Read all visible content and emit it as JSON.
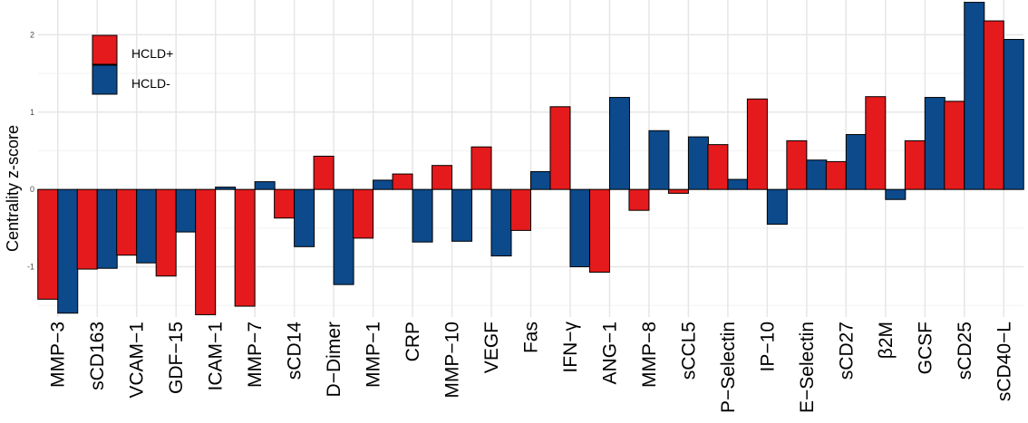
{
  "chart_data": {
    "type": "bar",
    "ylabel": "Centrality z-score",
    "xlabel": "",
    "ylim": [
      -1.65,
      2.45
    ],
    "yticks": [
      -1,
      0,
      1,
      2
    ],
    "categories": [
      "MMP−3",
      "sCD163",
      "VCAM−1",
      "GDF−15",
      "ICAM−1",
      "MMP−7",
      "sCD14",
      "D−Dimer",
      "MMP−1",
      "CRP",
      "MMP−10",
      "VEGF",
      "Fas",
      "IFN−γ",
      "ANG−1",
      "MMP−8",
      "sCCL5",
      "P−Selectin",
      "IP−10",
      "E−Selectin",
      "sCD27",
      "β2M",
      "GCSF",
      "sCD25",
      "sCD40−L"
    ],
    "series": [
      {
        "name": "HCLD+",
        "color": "#e41a1c",
        "values": [
          -1.42,
          -1.03,
          -0.85,
          -1.12,
          -1.62,
          -1.51,
          -0.37,
          0.43,
          -0.63,
          0.2,
          0.31,
          0.55,
          -0.53,
          1.07,
          -1.07,
          -0.27,
          -0.05,
          0.58,
          1.17,
          0.63,
          0.36,
          1.2,
          0.63,
          1.14,
          2.18
        ]
      },
      {
        "name": "HCLD-",
        "color": "#0c4a8c",
        "values": [
          -1.6,
          -1.02,
          -0.95,
          -0.55,
          0.03,
          0.1,
          -0.74,
          -1.23,
          0.12,
          -0.68,
          -0.67,
          -0.86,
          0.23,
          -1.0,
          1.19,
          0.76,
          0.68,
          0.13,
          -0.45,
          0.38,
          0.71,
          -0.13,
          1.19,
          2.42,
          1.94
        ]
      }
    ],
    "legend": {
      "position": "top-left"
    },
    "grid": true
  }
}
